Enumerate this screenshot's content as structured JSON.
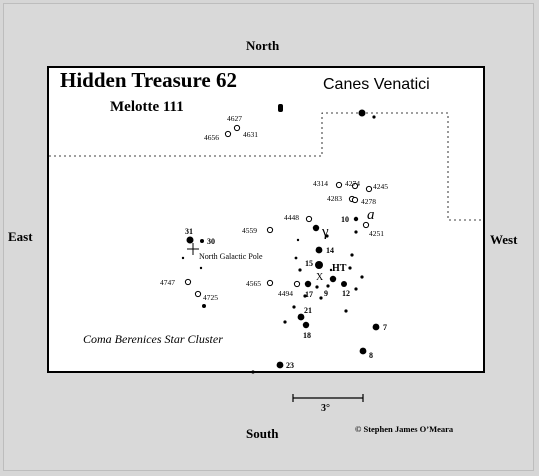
{
  "directions": {
    "north": "North",
    "south": "South",
    "east": "East",
    "west": "West"
  },
  "title": "Hidden Treasure 62",
  "subtitle": "Melotte 111",
  "constellation": "Canes Venatici",
  "cluster_label": "Coma Berenices Star Cluster",
  "pole_label": "North Galactic Pole",
  "scale_label": "3°",
  "copyright": "© Stephen James O’Meara",
  "galaxy_labels": [
    "4627",
    "4631",
    "4656",
    "4314",
    "4274",
    "4245",
    "4283",
    "4278",
    "4448",
    "4251",
    "4559",
    "4747",
    "4725",
    "4565",
    "4494"
  ],
  "star_labels": [
    "31",
    "30",
    "10",
    "a",
    "γ",
    "14",
    "HT",
    "15",
    "X",
    "9",
    "17",
    "12",
    "21",
    "18",
    "7",
    "8",
    "23"
  ]
}
